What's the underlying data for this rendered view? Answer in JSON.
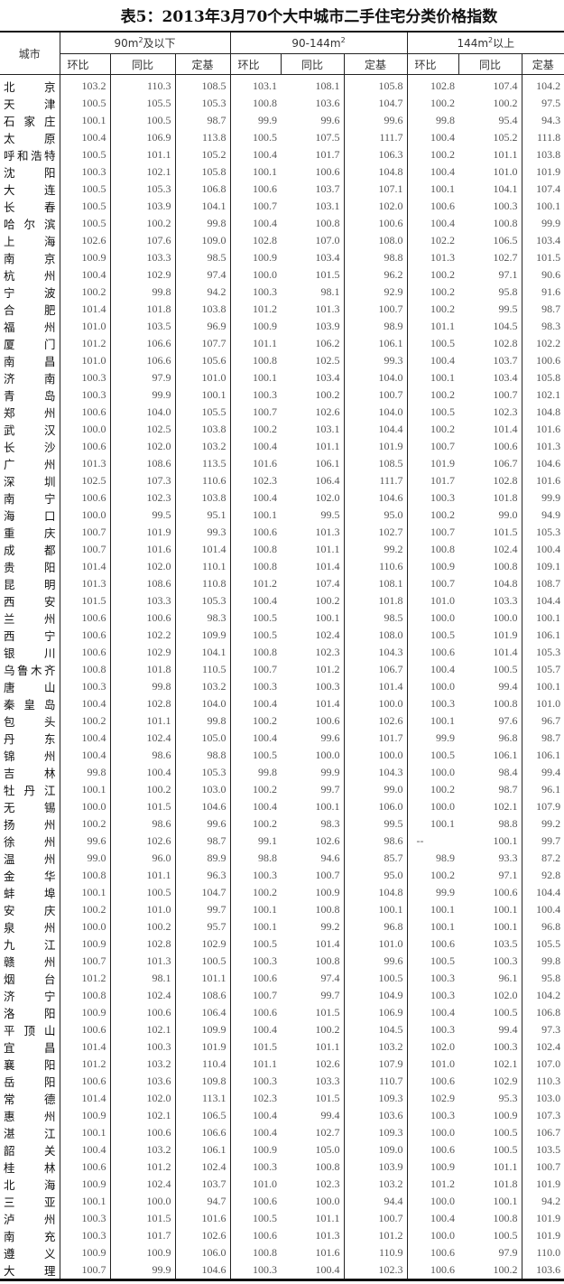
{
  "title": "表5：2013年3月70个大中城市二手住宅分类价格指数",
  "header": {
    "city": "城市",
    "groups": [
      {
        "pre": "90m",
        "sup": "2",
        "post": "及以下"
      },
      {
        "pre": "90-144m",
        "sup": "2",
        "post": ""
      },
      {
        "pre": "144m",
        "sup": "2",
        "post": "以上"
      }
    ],
    "sub": [
      "环比",
      "同比",
      "定基"
    ]
  },
  "rows": [
    [
      "北京",
      "103.2",
      "110.3",
      "108.5",
      "103.1",
      "108.1",
      "105.8",
      "102.8",
      "107.4",
      "104.2"
    ],
    [
      "天津",
      "100.5",
      "105.5",
      "105.3",
      "100.8",
      "103.6",
      "104.7",
      "100.2",
      "100.2",
      "97.5"
    ],
    [
      "石家庄",
      "100.1",
      "100.5",
      "98.7",
      "99.9",
      "99.6",
      "99.6",
      "99.8",
      "95.4",
      "94.3"
    ],
    [
      "太原",
      "100.4",
      "106.9",
      "113.8",
      "100.5",
      "107.5",
      "111.7",
      "100.4",
      "105.2",
      "111.8"
    ],
    [
      "呼和浩特",
      "100.5",
      "101.1",
      "105.2",
      "100.4",
      "101.7",
      "106.3",
      "100.2",
      "101.1",
      "103.8"
    ],
    [
      "沈阳",
      "100.3",
      "102.1",
      "105.8",
      "100.1",
      "100.6",
      "104.8",
      "100.4",
      "101.0",
      "101.9"
    ],
    [
      "大连",
      "100.5",
      "105.3",
      "106.8",
      "100.6",
      "103.7",
      "107.1",
      "100.1",
      "104.1",
      "107.4"
    ],
    [
      "长春",
      "100.5",
      "103.9",
      "104.1",
      "100.7",
      "103.1",
      "102.0",
      "100.6",
      "100.3",
      "100.1"
    ],
    [
      "哈尔滨",
      "100.5",
      "100.2",
      "99.8",
      "100.4",
      "100.8",
      "100.6",
      "100.4",
      "100.8",
      "99.9"
    ],
    [
      "上海",
      "102.6",
      "107.6",
      "109.0",
      "102.8",
      "107.0",
      "108.0",
      "102.2",
      "106.5",
      "103.4"
    ],
    [
      "南京",
      "100.9",
      "103.3",
      "98.5",
      "100.9",
      "103.4",
      "98.8",
      "101.3",
      "102.7",
      "101.5"
    ],
    [
      "杭州",
      "100.4",
      "102.9",
      "97.4",
      "100.0",
      "101.5",
      "96.2",
      "100.2",
      "97.1",
      "90.6"
    ],
    [
      "宁波",
      "100.2",
      "99.8",
      "94.2",
      "100.3",
      "98.1",
      "92.9",
      "100.2",
      "95.8",
      "91.6"
    ],
    [
      "合肥",
      "101.4",
      "101.8",
      "103.8",
      "101.2",
      "101.3",
      "100.7",
      "100.2",
      "99.5",
      "98.7"
    ],
    [
      "福州",
      "101.0",
      "103.5",
      "96.9",
      "100.9",
      "103.9",
      "98.9",
      "101.1",
      "104.5",
      "98.3"
    ],
    [
      "厦门",
      "101.2",
      "106.6",
      "107.7",
      "101.1",
      "106.2",
      "106.1",
      "100.5",
      "102.8",
      "102.2"
    ],
    [
      "南昌",
      "101.0",
      "106.6",
      "105.6",
      "100.8",
      "102.5",
      "99.3",
      "100.4",
      "103.7",
      "100.6"
    ],
    [
      "济南",
      "100.3",
      "97.9",
      "101.0",
      "100.1",
      "103.4",
      "104.0",
      "100.1",
      "103.4",
      "105.8"
    ],
    [
      "青岛",
      "100.3",
      "99.9",
      "100.1",
      "100.3",
      "100.2",
      "100.7",
      "100.2",
      "100.7",
      "102.1"
    ],
    [
      "郑州",
      "100.6",
      "104.0",
      "105.5",
      "100.7",
      "102.6",
      "104.0",
      "100.5",
      "102.3",
      "104.8"
    ],
    [
      "武汉",
      "100.0",
      "102.5",
      "103.8",
      "100.2",
      "103.1",
      "104.4",
      "100.2",
      "101.4",
      "101.6"
    ],
    [
      "长沙",
      "100.6",
      "102.0",
      "103.2",
      "100.4",
      "101.1",
      "101.9",
      "100.7",
      "100.6",
      "101.3"
    ],
    [
      "广州",
      "101.3",
      "108.6",
      "113.5",
      "101.6",
      "106.1",
      "108.5",
      "101.9",
      "106.7",
      "104.6"
    ],
    [
      "深圳",
      "102.5",
      "107.3",
      "110.6",
      "102.3",
      "106.4",
      "111.7",
      "101.7",
      "102.8",
      "101.6"
    ],
    [
      "南宁",
      "100.6",
      "102.3",
      "103.8",
      "100.4",
      "102.0",
      "104.6",
      "100.3",
      "101.8",
      "99.9"
    ],
    [
      "海口",
      "100.0",
      "99.5",
      "95.1",
      "100.1",
      "99.5",
      "95.0",
      "100.2",
      "99.0",
      "94.9"
    ],
    [
      "重庆",
      "100.7",
      "101.9",
      "99.3",
      "100.6",
      "101.3",
      "102.7",
      "100.7",
      "101.5",
      "105.3"
    ],
    [
      "成都",
      "100.7",
      "101.6",
      "101.4",
      "100.8",
      "101.1",
      "99.2",
      "100.8",
      "102.4",
      "100.4"
    ],
    [
      "贵阳",
      "101.4",
      "102.0",
      "110.1",
      "100.8",
      "101.4",
      "110.6",
      "100.9",
      "100.8",
      "109.1"
    ],
    [
      "昆明",
      "101.3",
      "108.6",
      "110.8",
      "101.2",
      "107.4",
      "108.1",
      "100.7",
      "104.8",
      "108.7"
    ],
    [
      "西安",
      "101.5",
      "103.3",
      "105.3",
      "100.4",
      "100.2",
      "101.8",
      "101.0",
      "103.3",
      "104.4"
    ],
    [
      "兰州",
      "100.6",
      "100.6",
      "98.3",
      "100.5",
      "100.1",
      "98.5",
      "100.0",
      "100.0",
      "100.1"
    ],
    [
      "西宁",
      "100.6",
      "102.2",
      "109.9",
      "100.5",
      "102.4",
      "108.0",
      "100.5",
      "101.9",
      "106.1"
    ],
    [
      "银川",
      "100.6",
      "102.9",
      "104.1",
      "100.8",
      "102.3",
      "104.3",
      "100.6",
      "101.4",
      "105.3"
    ],
    [
      "乌鲁木齐",
      "100.8",
      "101.8",
      "110.5",
      "100.7",
      "101.2",
      "106.7",
      "100.4",
      "100.5",
      "105.7"
    ],
    [
      "唐山",
      "100.3",
      "99.8",
      "103.2",
      "100.3",
      "100.3",
      "101.4",
      "100.0",
      "99.4",
      "100.1"
    ],
    [
      "秦皇岛",
      "100.4",
      "102.8",
      "104.0",
      "100.4",
      "101.4",
      "100.0",
      "100.3",
      "100.8",
      "101.0"
    ],
    [
      "包头",
      "100.2",
      "101.1",
      "99.8",
      "100.2",
      "100.6",
      "102.6",
      "100.1",
      "97.6",
      "96.7"
    ],
    [
      "丹东",
      "100.4",
      "102.4",
      "105.0",
      "100.4",
      "99.6",
      "101.7",
      "99.9",
      "96.8",
      "98.7"
    ],
    [
      "锦州",
      "100.4",
      "98.6",
      "98.8",
      "100.5",
      "100.0",
      "100.0",
      "100.5",
      "106.1",
      "106.1"
    ],
    [
      "吉林",
      "99.8",
      "100.4",
      "105.3",
      "99.8",
      "99.9",
      "104.3",
      "100.0",
      "98.4",
      "99.4"
    ],
    [
      "牡丹江",
      "100.1",
      "100.2",
      "103.0",
      "100.2",
      "99.7",
      "99.0",
      "100.2",
      "98.7",
      "96.1"
    ],
    [
      "无锡",
      "100.0",
      "101.5",
      "104.6",
      "100.4",
      "100.1",
      "106.0",
      "100.0",
      "102.1",
      "107.9"
    ],
    [
      "扬州",
      "100.2",
      "98.6",
      "99.6",
      "100.2",
      "98.3",
      "99.5",
      "100.1",
      "98.8",
      "99.2"
    ],
    [
      "徐州",
      "99.6",
      "102.6",
      "98.7",
      "99.1",
      "102.6",
      "98.6",
      "--",
      "100.1",
      "99.7"
    ],
    [
      "温州",
      "99.0",
      "96.0",
      "89.9",
      "98.8",
      "94.6",
      "85.7",
      "98.9",
      "93.3",
      "87.2"
    ],
    [
      "金华",
      "100.8",
      "101.1",
      "96.3",
      "100.3",
      "100.7",
      "95.0",
      "100.2",
      "97.1",
      "92.8"
    ],
    [
      "蚌埠",
      "100.1",
      "100.5",
      "104.7",
      "100.2",
      "100.9",
      "104.8",
      "99.9",
      "100.6",
      "104.4"
    ],
    [
      "安庆",
      "100.2",
      "101.0",
      "99.7",
      "100.1",
      "100.8",
      "100.1",
      "100.1",
      "100.1",
      "100.4"
    ],
    [
      "泉州",
      "100.0",
      "100.2",
      "95.7",
      "100.1",
      "99.2",
      "96.8",
      "100.1",
      "100.1",
      "96.8"
    ],
    [
      "九江",
      "100.9",
      "102.8",
      "102.9",
      "100.5",
      "101.4",
      "101.0",
      "100.6",
      "103.5",
      "105.5"
    ],
    [
      "赣州",
      "100.7",
      "101.3",
      "100.5",
      "100.3",
      "100.8",
      "99.6",
      "100.5",
      "100.3",
      "99.8"
    ],
    [
      "烟台",
      "101.2",
      "98.1",
      "101.1",
      "100.6",
      "97.4",
      "100.5",
      "100.3",
      "96.1",
      "95.8"
    ],
    [
      "济宁",
      "100.8",
      "102.4",
      "108.6",
      "100.7",
      "99.7",
      "104.9",
      "100.3",
      "102.0",
      "104.2"
    ],
    [
      "洛阳",
      "100.9",
      "100.6",
      "106.4",
      "100.6",
      "101.5",
      "106.9",
      "100.4",
      "100.5",
      "106.8"
    ],
    [
      "平顶山",
      "100.6",
      "102.1",
      "109.9",
      "100.4",
      "100.2",
      "104.5",
      "100.3",
      "99.4",
      "97.3"
    ],
    [
      "宜昌",
      "101.4",
      "100.3",
      "101.9",
      "101.5",
      "101.1",
      "103.2",
      "102.0",
      "100.3",
      "102.4"
    ],
    [
      "襄阳",
      "101.2",
      "103.2",
      "110.4",
      "101.1",
      "102.6",
      "107.9",
      "101.0",
      "102.1",
      "107.0"
    ],
    [
      "岳阳",
      "100.6",
      "103.6",
      "109.8",
      "100.3",
      "103.3",
      "110.7",
      "100.6",
      "102.9",
      "110.3"
    ],
    [
      "常德",
      "101.4",
      "102.0",
      "113.1",
      "102.3",
      "101.5",
      "109.3",
      "102.9",
      "95.3",
      "103.0"
    ],
    [
      "惠州",
      "100.9",
      "102.1",
      "106.5",
      "100.4",
      "99.4",
      "103.6",
      "100.3",
      "100.9",
      "107.3"
    ],
    [
      "湛江",
      "100.1",
      "100.6",
      "106.6",
      "100.4",
      "102.7",
      "109.3",
      "100.0",
      "100.5",
      "106.7"
    ],
    [
      "韶关",
      "100.4",
      "103.2",
      "106.1",
      "100.9",
      "105.0",
      "109.0",
      "100.6",
      "100.5",
      "103.5"
    ],
    [
      "桂林",
      "100.6",
      "101.2",
      "102.4",
      "100.3",
      "100.8",
      "103.9",
      "100.9",
      "101.1",
      "100.7"
    ],
    [
      "北海",
      "100.9",
      "102.4",
      "103.7",
      "101.0",
      "102.3",
      "103.2",
      "101.2",
      "101.8",
      "101.9"
    ],
    [
      "三亚",
      "100.1",
      "100.0",
      "94.7",
      "100.6",
      "100.0",
      "94.4",
      "100.0",
      "100.1",
      "94.2"
    ],
    [
      "泸州",
      "100.3",
      "101.5",
      "101.6",
      "100.5",
      "101.1",
      "100.7",
      "100.4",
      "100.8",
      "101.9"
    ],
    [
      "南充",
      "100.3",
      "101.7",
      "102.6",
      "100.6",
      "101.3",
      "101.2",
      "100.0",
      "100.5",
      "101.9"
    ],
    [
      "遵义",
      "100.9",
      "100.9",
      "106.0",
      "100.8",
      "101.6",
      "110.9",
      "100.6",
      "97.9",
      "110.0"
    ],
    [
      "大理",
      "100.7",
      "99.9",
      "104.6",
      "100.3",
      "100.4",
      "102.3",
      "100.6",
      "100.2",
      "103.6"
    ]
  ]
}
